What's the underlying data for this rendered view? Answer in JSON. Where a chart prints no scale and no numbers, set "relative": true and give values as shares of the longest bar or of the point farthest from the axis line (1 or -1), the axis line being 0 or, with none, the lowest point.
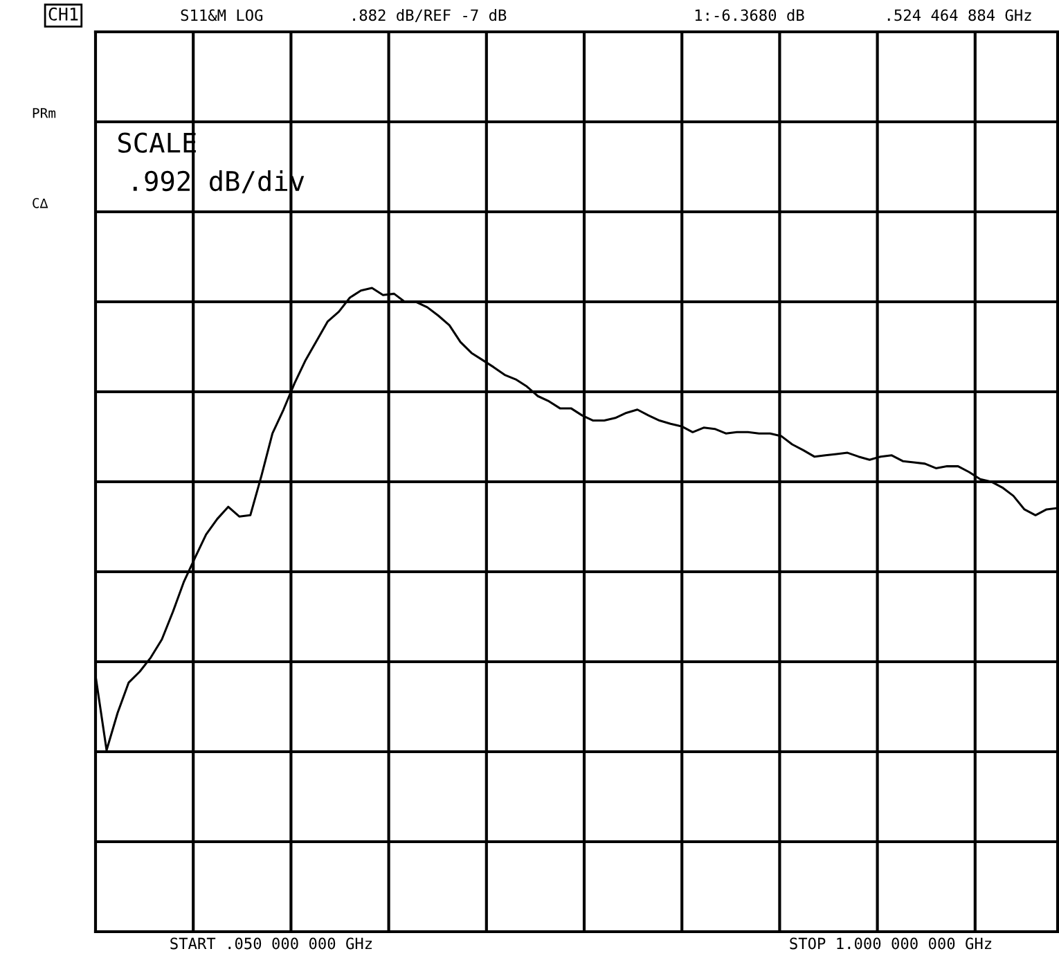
{
  "chart_data": {
    "type": "line",
    "relative": true,
    "annotations": [
      "CH1",
      "S11&M LOG",
      ".882 dB/REF -7 dB",
      "1:-6.3680 dB",
      ".524 464 884 GHz",
      "PRm",
      "C∆",
      "SCALE",
      ".992 dB/div",
      "START .050 000 000 GHz",
      "STOP 1.000 000 000 GHz"
    ],
    "categories": [
      null,
      null,
      null,
      null,
      null,
      null,
      null,
      null,
      null,
      null,
      null,
      null,
      null,
      null,
      null,
      null,
      null,
      null,
      null,
      null,
      null,
      null,
      null,
      null,
      null,
      null,
      null,
      null,
      null,
      null,
      null,
      null,
      null,
      null,
      null,
      null,
      null,
      null,
      null,
      null,
      null,
      null,
      null,
      null,
      null,
      null,
      null,
      null,
      null,
      null,
      null,
      null,
      null,
      null,
      null,
      null,
      null,
      null,
      null,
      null,
      null,
      null,
      null,
      null,
      null,
      null,
      null,
      null,
      null,
      null,
      null,
      null,
      null,
      null,
      null,
      null,
      null,
      null,
      null,
      null,
      null,
      null,
      null,
      null,
      null,
      null,
      null,
      null
    ],
    "series": [
      {
        "color": "#000000",
        "values": [
          0.398,
          0.282,
          0.34,
          0.387,
          0.404,
          0.426,
          0.454,
          0.497,
          0.544,
          0.581,
          0.617,
          0.641,
          0.66,
          0.645,
          0.647,
          0.708,
          0.774,
          0.811,
          0.852,
          0.888,
          0.918,
          0.948,
          0.963,
          0.985,
          0.996,
          1,
          0.989,
          0.991,
          0.978,
          0.978,
          0.97,
          0.957,
          0.942,
          0.916,
          0.899,
          0.888,
          0.877,
          0.865,
          0.858,
          0.847,
          0.832,
          0.824,
          0.813,
          0.813,
          0.802,
          0.794,
          0.794,
          0.798,
          0.806,
          0.811,
          0.802,
          0.794,
          0.789,
          0.785,
          0.776,
          0.783,
          0.781,
          0.774,
          0.776,
          0.776,
          0.774,
          0.774,
          0.77,
          0.757,
          0.748,
          0.738,
          0.74,
          0.742,
          0.744,
          0.738,
          0.733,
          0.738,
          0.74,
          0.731,
          0.729,
          0.727,
          0.72,
          0.723,
          0.723,
          0.714,
          0.703,
          0.699,
          0.69,
          0.677,
          0.656,
          0.647,
          0.656,
          0.658
        ]
      }
    ],
    "grid": true,
    "marker": "none",
    "line_style": "solid"
  }
}
